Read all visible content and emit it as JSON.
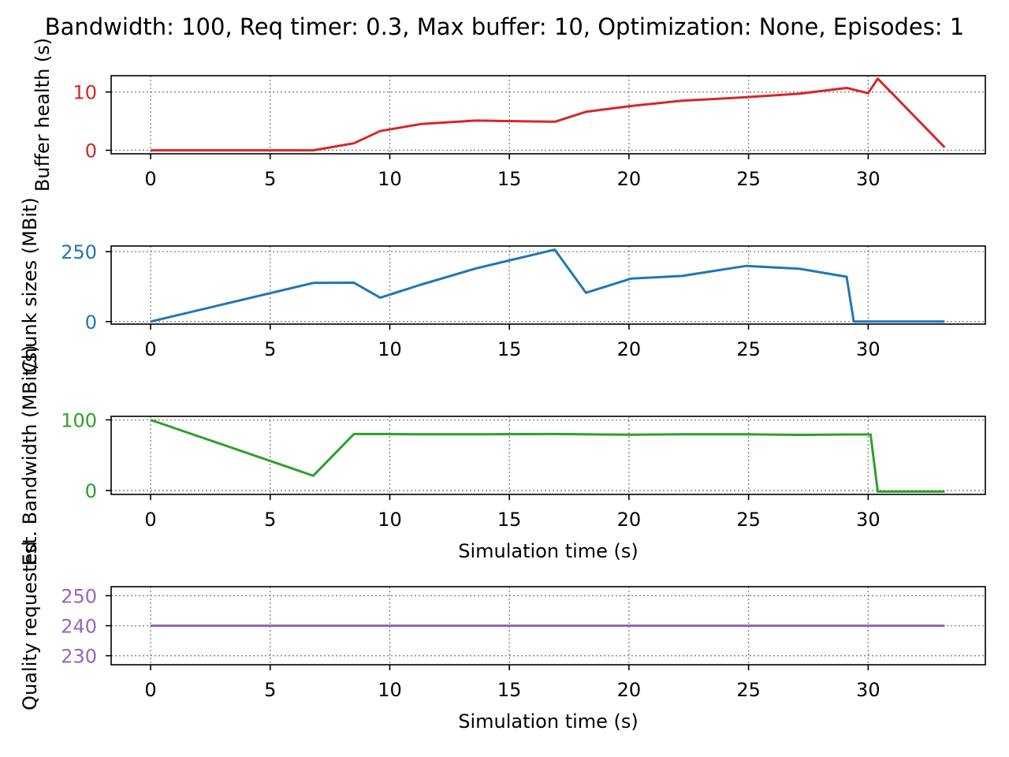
{
  "chart_data": {
    "title": "Bandwidth: 100, Req timer: 0.3, Max buffer: 10, Optimization: None, Episodes: 1",
    "subplots": [
      {
        "type": "line",
        "ylabel": "Buffer health (s)",
        "xlabel": "",
        "color": "#d62728",
        "grid": true,
        "xlim": [
          -1.65,
          34.9
        ],
        "ylim": [
          -0.6,
          12.8
        ],
        "xticks": [
          0,
          5,
          10,
          15,
          20,
          25,
          30
        ],
        "yticks": [
          0,
          10
        ],
        "x": [
          0,
          6.8,
          8.5,
          9.6,
          11.3,
          13.6,
          16.9,
          18.2,
          20.1,
          22.2,
          24.9,
          27.1,
          29.1,
          30.0,
          30.4,
          33.2
        ],
        "y": [
          0,
          0,
          1.2,
          3.3,
          4.5,
          5.1,
          4.9,
          6.6,
          7.6,
          8.5,
          9.1,
          9.7,
          10.7,
          9.8,
          12.3,
          0.5
        ]
      },
      {
        "type": "line",
        "ylabel": "Chunk sizes (MBit)",
        "xlabel": "",
        "color": "#1f77b4",
        "grid": true,
        "xlim": [
          -1.65,
          34.9
        ],
        "ylim": [
          -9,
          270
        ],
        "xticks": [
          0,
          5,
          10,
          15,
          20,
          25,
          30
        ],
        "yticks": [
          0,
          250
        ],
        "x": [
          0,
          6.8,
          8.5,
          9.6,
          11.3,
          13.6,
          16.9,
          18.2,
          20.1,
          22.2,
          24.9,
          27.1,
          29.1,
          29.4,
          30.0,
          33.2
        ],
        "y": [
          0,
          138,
          139,
          85,
          132,
          190,
          257,
          103,
          154,
          163,
          199,
          189,
          160,
          0,
          0,
          0
        ]
      },
      {
        "type": "line",
        "ylabel": "Est. Bandwidth (MBit/s)",
        "xlabel": "Simulation time (s)",
        "color": "#2ca02c",
        "grid": true,
        "xlim": [
          -1.65,
          34.9
        ],
        "ylim": [
          -5.5,
          105
        ],
        "xticks": [
          0,
          5,
          10,
          15,
          20,
          25,
          30
        ],
        "yticks": [
          0,
          100
        ],
        "x": [
          0,
          6.8,
          8.5,
          9.6,
          11.3,
          13.6,
          16.9,
          18.2,
          20.1,
          22.2,
          24.9,
          27.1,
          29.1,
          30.1,
          30.4,
          33.2
        ],
        "y": [
          100,
          21,
          80,
          80,
          79.5,
          79.5,
          80,
          79.5,
          79,
          79.5,
          79.5,
          78.8,
          79.3,
          79.3,
          -1.5,
          -1.5
        ]
      },
      {
        "type": "line",
        "ylabel": "Quality requested",
        "xlabel": "Simulation time (s)",
        "color": "#9467bd",
        "grid": true,
        "xlim": [
          -1.65,
          34.9
        ],
        "ylim": [
          227,
          253
        ],
        "xticks": [
          0,
          5,
          10,
          15,
          20,
          25,
          30
        ],
        "yticks": [
          230,
          240,
          250
        ],
        "x": [
          0,
          33.2
        ],
        "y": [
          240,
          240
        ]
      }
    ]
  }
}
